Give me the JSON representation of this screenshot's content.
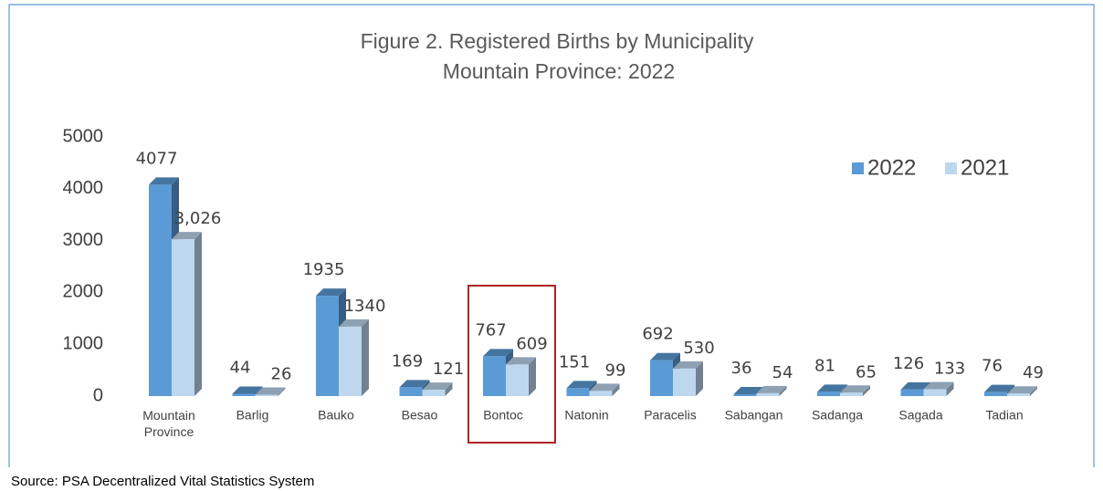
{
  "chart_data": {
    "type": "bar3d",
    "title": "Figure 2. Registered Births by Municipality",
    "subtitle": "Mountain Province: 2022",
    "source": "Source: PSA Decentralized Vital Statistics System",
    "categories": [
      "Mountain Province",
      "Barlig",
      "Bauko",
      "Besao",
      "Bontoc",
      "Natonin",
      "Paracelis",
      "Sabangan",
      "Sadanga",
      "Sagada",
      "Tadian"
    ],
    "series": [
      {
        "name": "2022",
        "color": "#5b9bd5",
        "values": [
          4077,
          44,
          1935,
          169,
          767,
          151,
          692,
          36,
          81,
          126,
          76
        ]
      },
      {
        "name": "2021",
        "color": "#bdd7ee",
        "values": [
          3026,
          26,
          1340,
          121,
          609,
          99,
          530,
          54,
          65,
          133,
          49
        ],
        "value_labels": [
          "3,026",
          "26",
          "1340",
          "121",
          "609",
          "99",
          "530",
          "54",
          "65",
          "133",
          "49"
        ]
      }
    ],
    "ylim": [
      0,
      5000
    ],
    "yticks": [
      0,
      1000,
      2000,
      3000,
      4000,
      5000
    ],
    "legend": "top-right"
  }
}
